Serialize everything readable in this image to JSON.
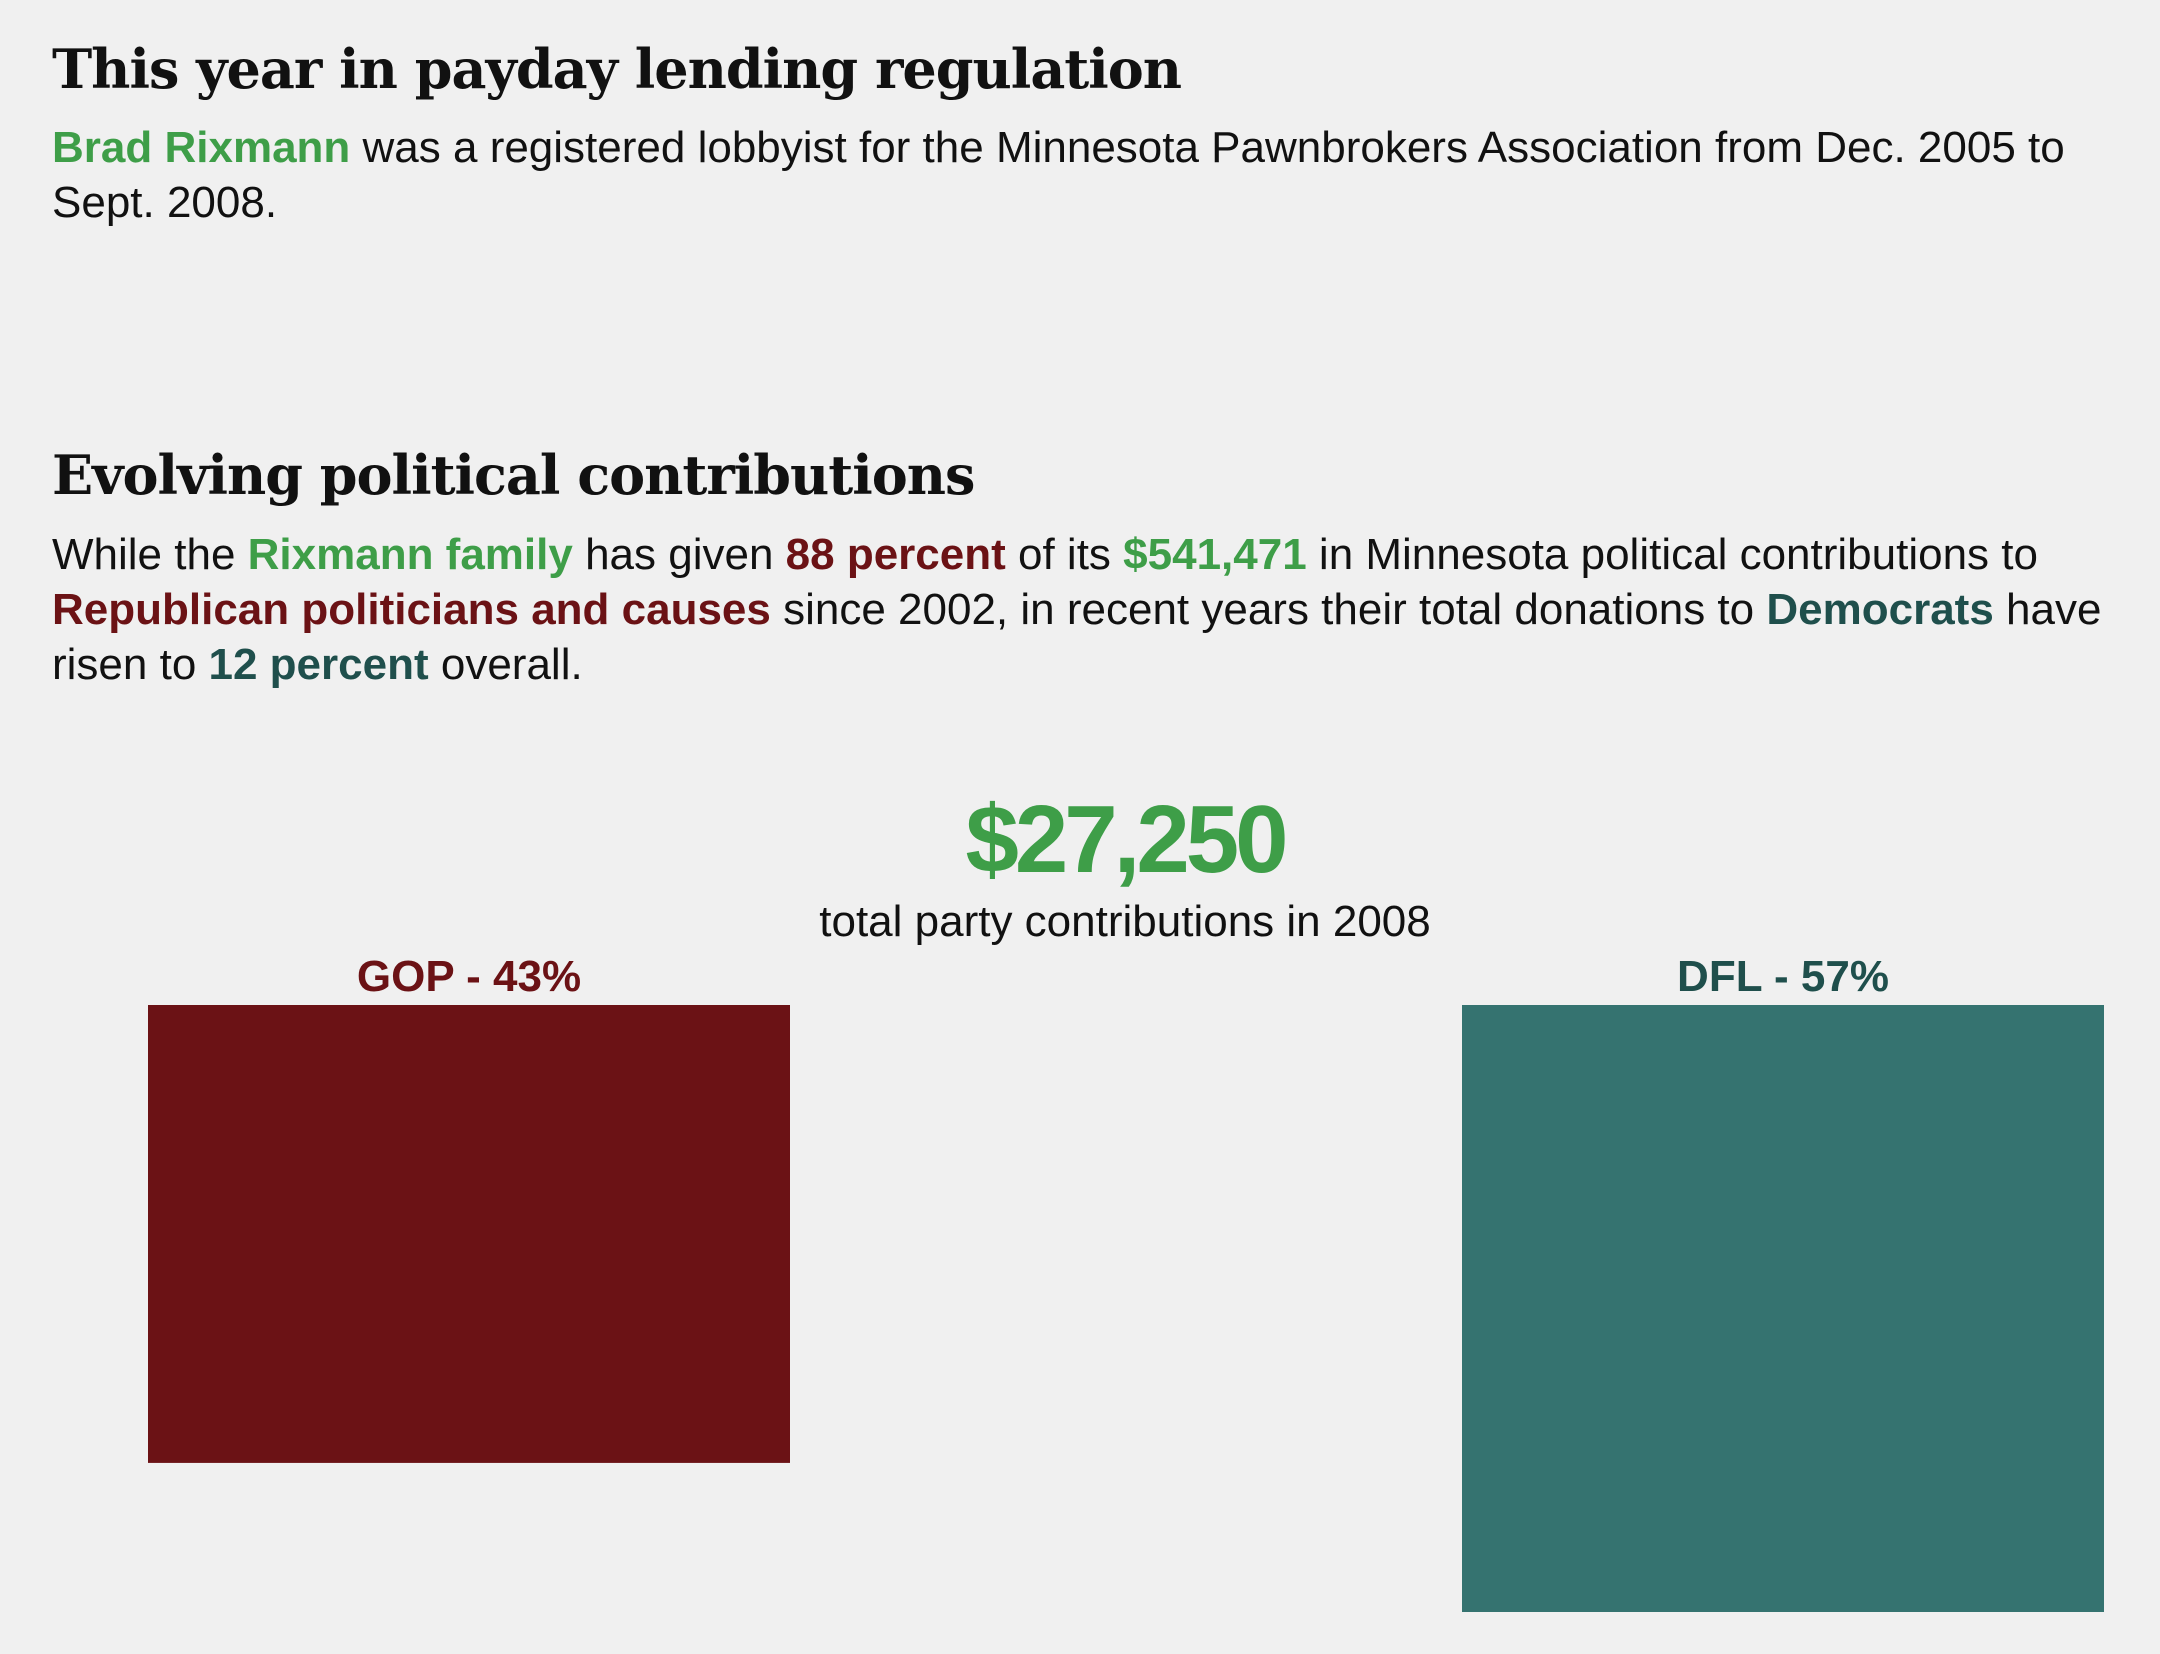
{
  "section1": {
    "heading": "This year in payday lending regulation",
    "paragraph": {
      "name": "Brad Rixmann",
      "rest": " was a registered lobbyist for the Minnesota Pawnbrokers Association from Dec. 2005 to Sept. 2008."
    }
  },
  "section2": {
    "heading": "Evolving political contributions",
    "paragraph": {
      "t1": "While the ",
      "family": "Rixmann family",
      "t2": " has given ",
      "gop_pct": "88 percent",
      "t3": " of its ",
      "total": "$541,471",
      "t4": " in Minnesota political contributions to ",
      "gop_causes": "Republican politicians and causes",
      "t5": " since 2002, in recent years their total donations to ",
      "democrats": "Democrats",
      "t6": " have risen to ",
      "dem_pct": "12 percent",
      "t7": " overall."
    }
  },
  "colors": {
    "green": "#3e9e48",
    "gop": "#6b1215",
    "dfl": "#357370",
    "dfl_text": "#1f4f4c",
    "text": "#111111"
  },
  "chart_data": {
    "type": "bar",
    "total_value": "$27,250",
    "total_label": "total party contributions in 2008",
    "categories": [
      "GOP",
      "DFL"
    ],
    "values": [
      43,
      57
    ],
    "labels": [
      "GOP - 43%",
      "DFL - 57%"
    ],
    "colors": [
      "#6b1215",
      "#357370"
    ],
    "unit": "%"
  }
}
